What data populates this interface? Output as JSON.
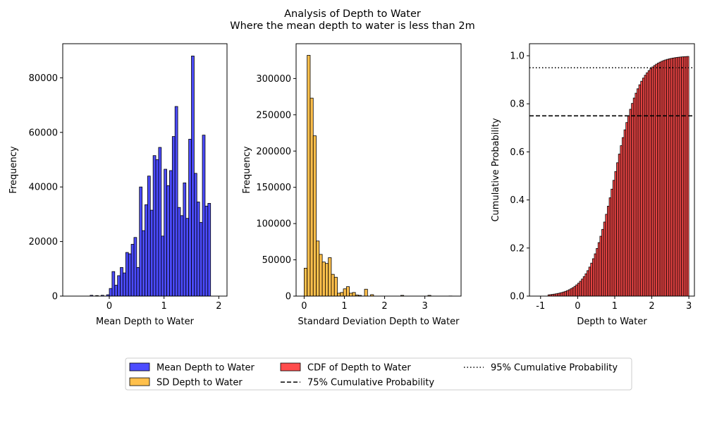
{
  "figure": {
    "title": "Analysis of Depth to Water",
    "subtitle": "Where the mean depth to water is less than 2m"
  },
  "colors": {
    "mean": "#0000ff",
    "sd": "#ffa500",
    "cdf": "#ff0000",
    "edge": "#000000"
  },
  "legend": {
    "placement": "bottom-center",
    "entries": [
      {
        "label": "Mean Depth to Water",
        "kind": "patch",
        "color": "#0000ff"
      },
      {
        "label": "SD Depth to Water",
        "kind": "patch",
        "color": "#ffa500"
      },
      {
        "label": "CDF of Depth to Water",
        "kind": "patch",
        "color": "#ff0000"
      },
      {
        "label": "75% Cumulative Probability",
        "kind": "dashed-line",
        "color": "#000000"
      },
      {
        "label": "95% Cumulative Probability",
        "kind": "dotted-line",
        "color": "#000000"
      }
    ]
  },
  "chart_data": [
    {
      "type": "bar",
      "series_name": "Mean Depth to Water",
      "xlabel": "Mean Depth to Water",
      "ylabel": "Frequency",
      "xlim": [
        -0.85,
        2.15
      ],
      "ylim": [
        0,
        92500
      ],
      "xticks": [
        0,
        1,
        2
      ],
      "yticks": [
        0,
        20000,
        40000,
        60000,
        80000
      ],
      "bin_width": 0.05,
      "bins": [
        [
          -0.8,
          0
        ],
        [
          -0.75,
          0
        ],
        [
          -0.7,
          0
        ],
        [
          -0.65,
          0
        ],
        [
          -0.6,
          0
        ],
        [
          -0.55,
          0
        ],
        [
          -0.5,
          0
        ],
        [
          -0.45,
          0
        ],
        [
          -0.4,
          0
        ],
        [
          -0.35,
          300
        ],
        [
          -0.3,
          0
        ],
        [
          -0.25,
          200
        ],
        [
          -0.2,
          0
        ],
        [
          -0.15,
          300
        ],
        [
          -0.1,
          0
        ],
        [
          -0.05,
          500
        ],
        [
          0,
          2800
        ],
        [
          0.05,
          9000
        ],
        [
          0.1,
          4000
        ],
        [
          0.15,
          7500
        ],
        [
          0.2,
          10500
        ],
        [
          0.25,
          8500
        ],
        [
          0.3,
          16000
        ],
        [
          0.35,
          15500
        ],
        [
          0.4,
          19000
        ],
        [
          0.45,
          21500
        ],
        [
          0.5,
          10500
        ],
        [
          0.55,
          40000
        ],
        [
          0.6,
          24000
        ],
        [
          0.65,
          33500
        ],
        [
          0.7,
          44000
        ],
        [
          0.75,
          31500
        ],
        [
          0.8,
          51500
        ],
        [
          0.85,
          50000
        ],
        [
          0.9,
          54500
        ],
        [
          0.95,
          22000
        ],
        [
          1.0,
          46500
        ],
        [
          1.05,
          40500
        ],
        [
          1.1,
          46000
        ],
        [
          1.15,
          58500
        ],
        [
          1.2,
          69500
        ],
        [
          1.25,
          32500
        ],
        [
          1.3,
          29500
        ],
        [
          1.35,
          41500
        ],
        [
          1.4,
          28500
        ],
        [
          1.45,
          57500
        ],
        [
          1.5,
          88000
        ],
        [
          1.55,
          45000
        ],
        [
          1.6,
          34500
        ],
        [
          1.65,
          27000
        ],
        [
          1.7,
          59000
        ],
        [
          1.75,
          33000
        ],
        [
          1.8,
          34000
        ]
      ]
    },
    {
      "type": "bar",
      "series_name": "SD Depth to Water",
      "xlabel": "Standard Deviation Depth to Water",
      "ylabel": "Frequency",
      "xlim": [
        -0.2,
        3.9
      ],
      "ylim": [
        0,
        348000
      ],
      "xticks": [
        0,
        1,
        2,
        3
      ],
      "yticks": [
        0,
        50000,
        100000,
        150000,
        200000,
        250000,
        300000
      ],
      "bin_width": 0.075,
      "bins": [
        [
          0,
          38500
        ],
        [
          0.075,
          332000
        ],
        [
          0.15,
          273000
        ],
        [
          0.225,
          221000
        ],
        [
          0.3,
          76000
        ],
        [
          0.375,
          57500
        ],
        [
          0.45,
          47000
        ],
        [
          0.525,
          45000
        ],
        [
          0.6,
          53000
        ],
        [
          0.675,
          30000
        ],
        [
          0.75,
          26000
        ],
        [
          0.825,
          4000
        ],
        [
          0.9,
          5000
        ],
        [
          0.975,
          10000
        ],
        [
          1.05,
          13000
        ],
        [
          1.125,
          4000
        ],
        [
          1.2,
          5000
        ],
        [
          1.275,
          1500
        ],
        [
          1.35,
          1000
        ],
        [
          1.425,
          0
        ],
        [
          1.5,
          9500
        ],
        [
          1.575,
          0
        ],
        [
          1.65,
          2000
        ],
        [
          2.4,
          1000
        ],
        [
          3.075,
          1000
        ],
        [
          3.6,
          200
        ]
      ]
    },
    {
      "type": "bar",
      "series_name": "CDF of Depth to Water",
      "xlabel": "Depth to Water",
      "ylabel": "Cumulative Probability",
      "xlim": [
        -1.3,
        3.15
      ],
      "ylim": [
        0,
        1.05
      ],
      "xticks": [
        -1,
        0,
        1,
        2,
        3
      ],
      "yticks": [
        0.0,
        0.2,
        0.4,
        0.6,
        0.8,
        1.0
      ],
      "tick_labels_y": [
        "0.0",
        "0.2",
        "0.4",
        "0.6",
        "0.8",
        "1.0"
      ],
      "bin_range": [
        -0.8,
        2.95
      ],
      "bin_width": 0.05,
      "cdf_logistic": {
        "center": 1.0,
        "scale": 0.34
      },
      "reference_lines": [
        {
          "name": "75% Cumulative Probability",
          "y": 0.75,
          "style": "dashed"
        },
        {
          "name": "95% Cumulative Probability",
          "y": 0.95,
          "style": "dotted"
        }
      ]
    }
  ]
}
